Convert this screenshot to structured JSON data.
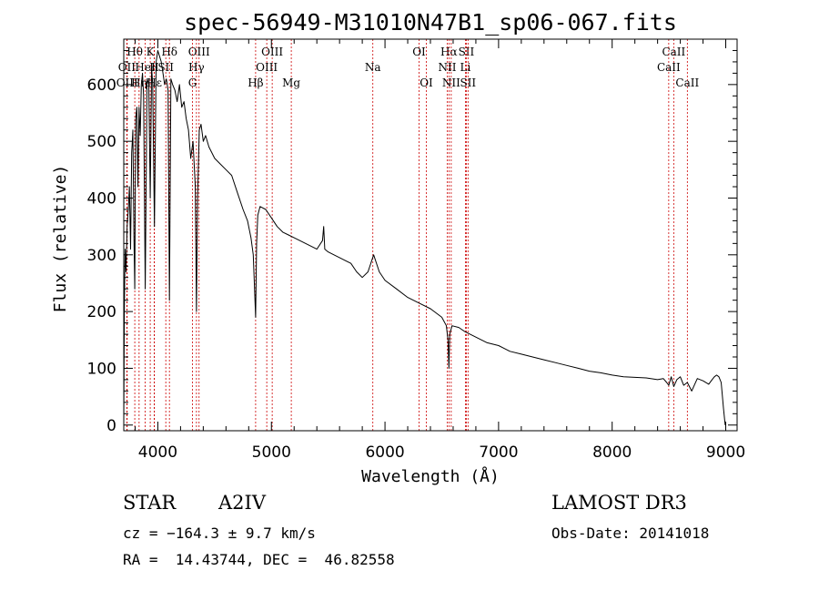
{
  "chart_data": {
    "type": "line",
    "title": "spec-56949-M31010N47B1_sp06-067.fits",
    "xlabel": "Wavelength (Å)",
    "ylabel": "Flux (relative)",
    "xlim": [
      3700,
      9100
    ],
    "ylim": [
      -10,
      680
    ],
    "xticks": [
      4000,
      5000,
      6000,
      7000,
      8000,
      9000
    ],
    "xtick_labels": [
      "4000",
      "5000",
      "6000",
      "7000",
      "8000",
      "9000"
    ],
    "yticks": [
      0,
      100,
      200,
      300,
      400,
      500,
      600
    ],
    "ytick_labels": [
      "0",
      "100",
      "200",
      "300",
      "400",
      "500",
      "600"
    ],
    "grid": false,
    "series": [
      {
        "name": "spectrum",
        "x": [
          3700,
          3705,
          3712,
          3720,
          3730,
          3740,
          3750,
          3760,
          3770,
          3775,
          3780,
          3790,
          3797,
          3805,
          3815,
          3825,
          3835,
          3845,
          3855,
          3865,
          3875,
          3889,
          3905,
          3920,
          3933,
          3945,
          3955,
          3970,
          3985,
          4000,
          4015,
          4030,
          4045,
          4060,
          4075,
          4090,
          4102,
          4115,
          4130,
          4150,
          4170,
          4190,
          4210,
          4230,
          4250,
          4270,
          4290,
          4310,
          4330,
          4340,
          4350,
          4365,
          4380,
          4400,
          4420,
          4450,
          4500,
          4550,
          4600,
          4650,
          4700,
          4750,
          4790,
          4820,
          4840,
          4850,
          4861,
          4870,
          4880,
          4900,
          4950,
          5000,
          5050,
          5100,
          5150,
          5200,
          5300,
          5400,
          5450,
          5460,
          5470,
          5500,
          5600,
          5700,
          5750,
          5800,
          5850,
          5900,
          5950,
          6000,
          6100,
          6200,
          6300,
          6400,
          6500,
          6540,
          6555,
          6563,
          6570,
          6590,
          6650,
          6700,
          6800,
          6900,
          7000,
          7100,
          7200,
          7300,
          7400,
          7500,
          7600,
          7700,
          7800,
          7900,
          8000,
          8100,
          8200,
          8300,
          8400,
          8450,
          8480,
          8498,
          8520,
          8542,
          8570,
          8600,
          8630,
          8662,
          8700,
          8750,
          8800,
          8850,
          8880,
          8900,
          8920,
          8940,
          8960,
          8980,
          8995
        ],
        "values": [
          0,
          200,
          310,
          270,
          350,
          380,
          420,
          310,
          480,
          500,
          520,
          330,
          240,
          540,
          560,
          420,
          560,
          510,
          600,
          620,
          580,
          240,
          610,
          600,
          400,
          630,
          600,
          350,
          640,
          660,
          650,
          640,
          620,
          600,
          610,
          590,
          220,
          610,
          600,
          590,
          570,
          600,
          560,
          570,
          540,
          520,
          470,
          500,
          420,
          200,
          400,
          520,
          530,
          500,
          510,
          490,
          470,
          460,
          450,
          440,
          410,
          380,
          360,
          330,
          300,
          250,
          190,
          320,
          370,
          385,
          380,
          365,
          350,
          340,
          335,
          330,
          320,
          310,
          325,
          350,
          310,
          305,
          295,
          285,
          270,
          260,
          270,
          300,
          270,
          255,
          240,
          225,
          215,
          205,
          190,
          175,
          150,
          100,
          160,
          175,
          172,
          165,
          155,
          145,
          140,
          130,
          125,
          120,
          115,
          110,
          105,
          100,
          95,
          92,
          88,
          85,
          84,
          83,
          80,
          82,
          75,
          70,
          85,
          68,
          80,
          85,
          70,
          75,
          60,
          82,
          78,
          72,
          80,
          85,
          88,
          85,
          75,
          30,
          0
        ]
      }
    ],
    "spectral_lines": [
      {
        "label": "Hθ",
        "wave": 3797,
        "row": 0
      },
      {
        "label": "OII",
        "wave": 3727,
        "row": 1
      },
      {
        "label": "OIII",
        "wave": 3730,
        "row": 2
      },
      {
        "label": "Hη",
        "wave": 3835,
        "row": 2
      },
      {
        "label": "K",
        "wave": 3933,
        "row": 0
      },
      {
        "label": "HeI",
        "wave": 3889,
        "row": 1
      },
      {
        "label": "H",
        "wave": 3968,
        "row": 1
      },
      {
        "label": "Hε",
        "wave": 3970,
        "row": 2
      },
      {
        "label": "Hδ",
        "wave": 4102,
        "row": 0
      },
      {
        "label": "SII",
        "wave": 4070,
        "row": 1
      },
      {
        "label": "OIII",
        "wave": 4363,
        "row": 0
      },
      {
        "label": "Hγ",
        "wave": 4340,
        "row": 1
      },
      {
        "label": "G",
        "wave": 4305,
        "row": 2
      },
      {
        "label": "Hβ",
        "wave": 4861,
        "row": 2
      },
      {
        "label": "OIII",
        "wave": 5007,
        "row": 0
      },
      {
        "label": "OIII",
        "wave": 4959,
        "row": 1
      },
      {
        "label": "Mg",
        "wave": 5175,
        "row": 2
      },
      {
        "label": "Na",
        "wave": 5893,
        "row": 1
      },
      {
        "label": "OI",
        "wave": 6300,
        "row": 0
      },
      {
        "label": "OI",
        "wave": 6364,
        "row": 2
      },
      {
        "label": "Hα",
        "wave": 6563,
        "row": 0
      },
      {
        "label": "NII",
        "wave": 6548,
        "row": 1
      },
      {
        "label": "NII",
        "wave": 6583,
        "row": 2
      },
      {
        "label": "SII",
        "wave": 6716,
        "row": 0
      },
      {
        "label": "Li",
        "wave": 6708,
        "row": 1
      },
      {
        "label": "SII",
        "wave": 6731,
        "row": 2
      },
      {
        "label": "CaII",
        "wave": 8542,
        "row": 0
      },
      {
        "label": "CaII",
        "wave": 8498,
        "row": 1
      },
      {
        "label": "CaII",
        "wave": 8662,
        "row": 2
      }
    ],
    "line_color": "#cc0000",
    "spectrum_color": "#000000"
  },
  "info": {
    "class": "STAR",
    "subclass": "A2IV",
    "cz": "cz = −164.3 ± 9.7 km/s",
    "radec": "RA =  14.43744, DEC =  46.82558",
    "survey": "LAMOST DR3",
    "obs_date": "Obs-Date: 20141018"
  }
}
